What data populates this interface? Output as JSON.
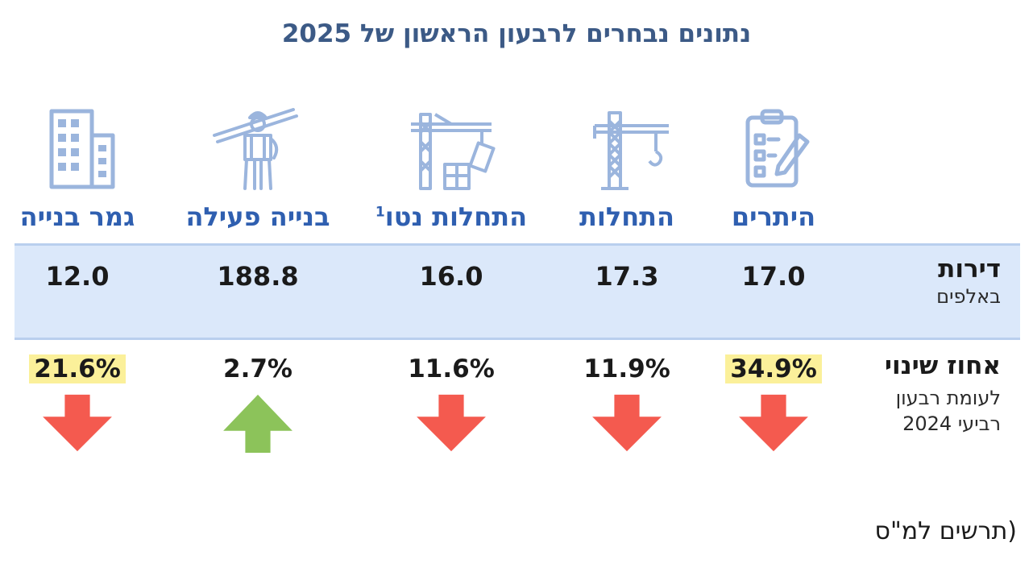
{
  "title": "נתונים נבחרים לרבעון הראשון של 2025",
  "row_headers": {
    "units_label": "דירות",
    "units_sub": "באלפים",
    "change_label": "אחוז שינוי",
    "change_sub_1": "לעומת רבעון",
    "change_sub_2": "רביעי 2024"
  },
  "columns": [
    {
      "label": "היתרים",
      "superscript": "",
      "icon": "permit-clipboard-icon",
      "value": "17.0",
      "change": "34.9%",
      "direction": "down",
      "highlight": true
    },
    {
      "label": "התחלות",
      "superscript": "",
      "icon": "tower-crane-icon",
      "value": "17.3",
      "change": "11.9%",
      "direction": "down",
      "highlight": false
    },
    {
      "label": "התחלות נטו",
      "superscript": "1",
      "icon": "crane-building-icon",
      "value": "16.0",
      "change": "11.6%",
      "direction": "down",
      "highlight": false
    },
    {
      "label": "בנייה פעילה",
      "superscript": "",
      "icon": "construction-worker-icon",
      "value": "188.8",
      "change": "2.7%",
      "direction": "up",
      "highlight": false
    },
    {
      "label": "גמר בנייה",
      "superscript": "",
      "icon": "office-building-icon",
      "value": "12.0",
      "change": "21.6%",
      "direction": "down",
      "highlight": true
    }
  ],
  "colors": {
    "title": "#3c5a86",
    "label": "#2f5fb0",
    "band": "#dbe8fa",
    "icon": "#9bb5dd",
    "arrow_down": "#f45a4f",
    "arrow_up": "#8cc35a",
    "highlight": "#fbf09a"
  },
  "source": "(תרשים למ\"ס",
  "chart_data": {
    "type": "table",
    "title": "נתונים נבחרים לרבעון הראשון של 2025",
    "categories": [
      "היתרים",
      "התחלות",
      "התחלות נטו",
      "בנייה פעילה",
      "גמר בנייה"
    ],
    "series": [
      {
        "name": "דירות",
        "values": [
          17.0,
          17.3,
          16.0,
          188.8,
          12.0
        ]
      },
      {
        "name": "אחוז שינוי",
        "values": [
          -34.9,
          -11.9,
          -11.6,
          2.7,
          -21.6
        ]
      }
    ]
  }
}
